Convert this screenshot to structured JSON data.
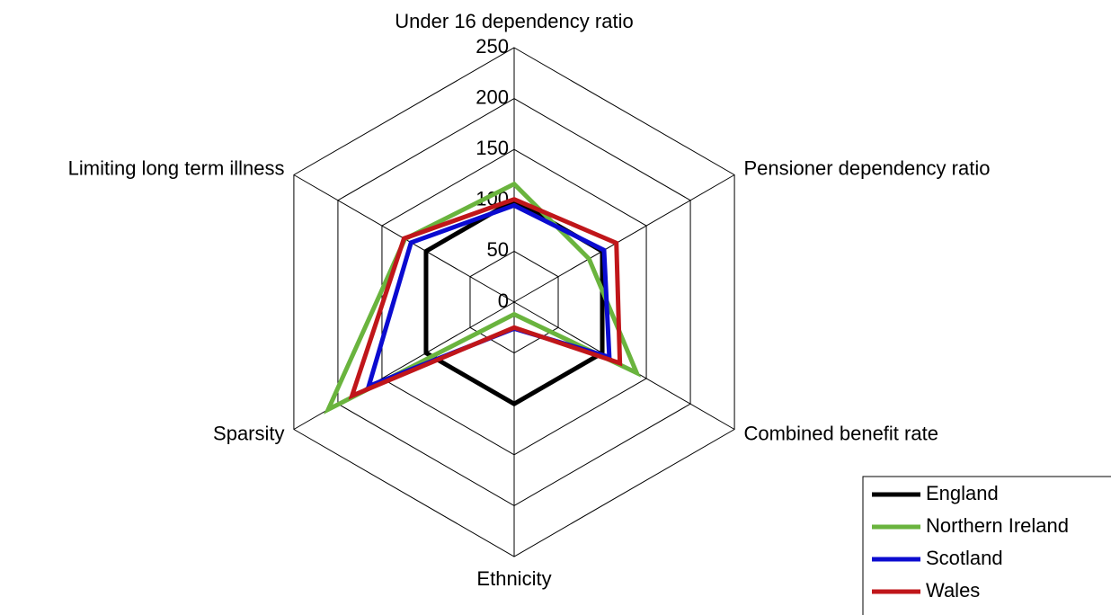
{
  "chart_data": {
    "type": "radar",
    "categories": [
      "Under 16 dependency ratio",
      "Pensioner dependency ratio",
      "Combined benefit rate",
      "Ethnicity",
      "Sparsity",
      "Limiting long term illness"
    ],
    "series": [
      {
        "name": "England",
        "color": "#000000",
        "values": [
          100,
          100,
          100,
          100,
          100,
          100
        ]
      },
      {
        "name": "Northern Ireland",
        "color": "#6ab43e",
        "values": [
          116,
          85,
          139,
          12,
          211,
          124
        ]
      },
      {
        "name": "Scotland",
        "color": "#0b0bd0",
        "values": [
          95,
          102,
          108,
          26,
          165,
          117
        ]
      },
      {
        "name": "Wales",
        "color": "#c0161a",
        "values": [
          101,
          116,
          120,
          25,
          184,
          125
        ]
      }
    ],
    "rlim": [
      0,
      250
    ],
    "rticks": [
      0,
      50,
      100,
      150,
      200,
      250
    ],
    "grid": true,
    "legend": "lower right"
  }
}
